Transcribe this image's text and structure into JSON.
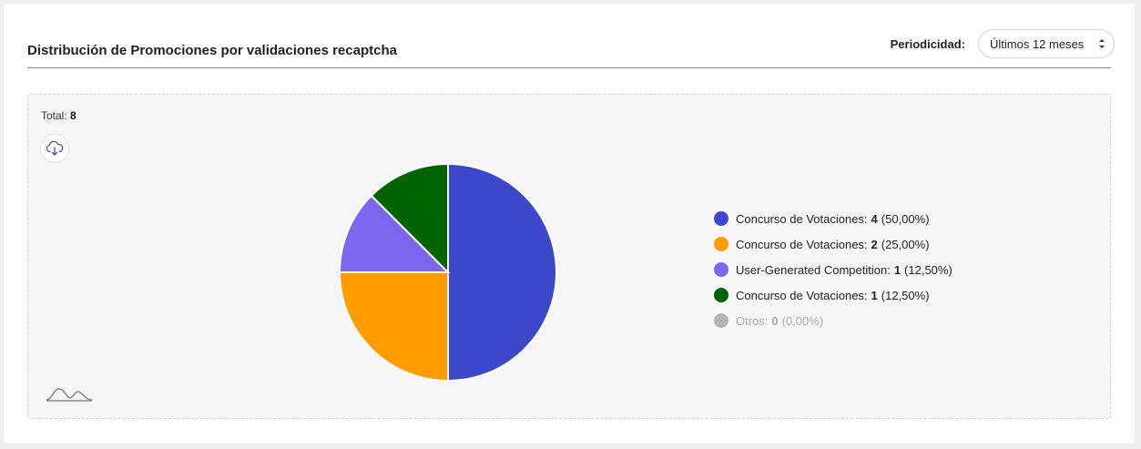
{
  "header": {
    "title": "Distribución de Promociones por validaciones recaptcha",
    "period_label": "Periodicidad:",
    "period_value": "Últimos 12 meses"
  },
  "panel": {
    "total_label": "Total:",
    "total_value": "8"
  },
  "icons": {
    "download": "cloud-download-icon",
    "logo": "wave-logo-icon",
    "select_caret": "sort-caret-icon"
  },
  "chart_data": {
    "type": "pie",
    "total": 8,
    "slices": [
      {
        "label": "Concurso de Votaciones:",
        "value": 4,
        "percent": "(50,00%)",
        "color": "#3c48c9"
      },
      {
        "label": "Concurso de Votaciones:",
        "value": 2,
        "percent": "(25,00%)",
        "color": "#ff9c00"
      },
      {
        "label": "User-Generated Competition:",
        "value": 1,
        "percent": "(12,50%)",
        "color": "#7b68ee"
      },
      {
        "label": "Concurso de Votaciones:",
        "value": 1,
        "percent": "(12,50%)",
        "color": "#006400"
      },
      {
        "label": "Otros:",
        "value": 0,
        "percent": "(0,00%)",
        "color": "#b5b5b5"
      }
    ],
    "legend_position": "right"
  }
}
